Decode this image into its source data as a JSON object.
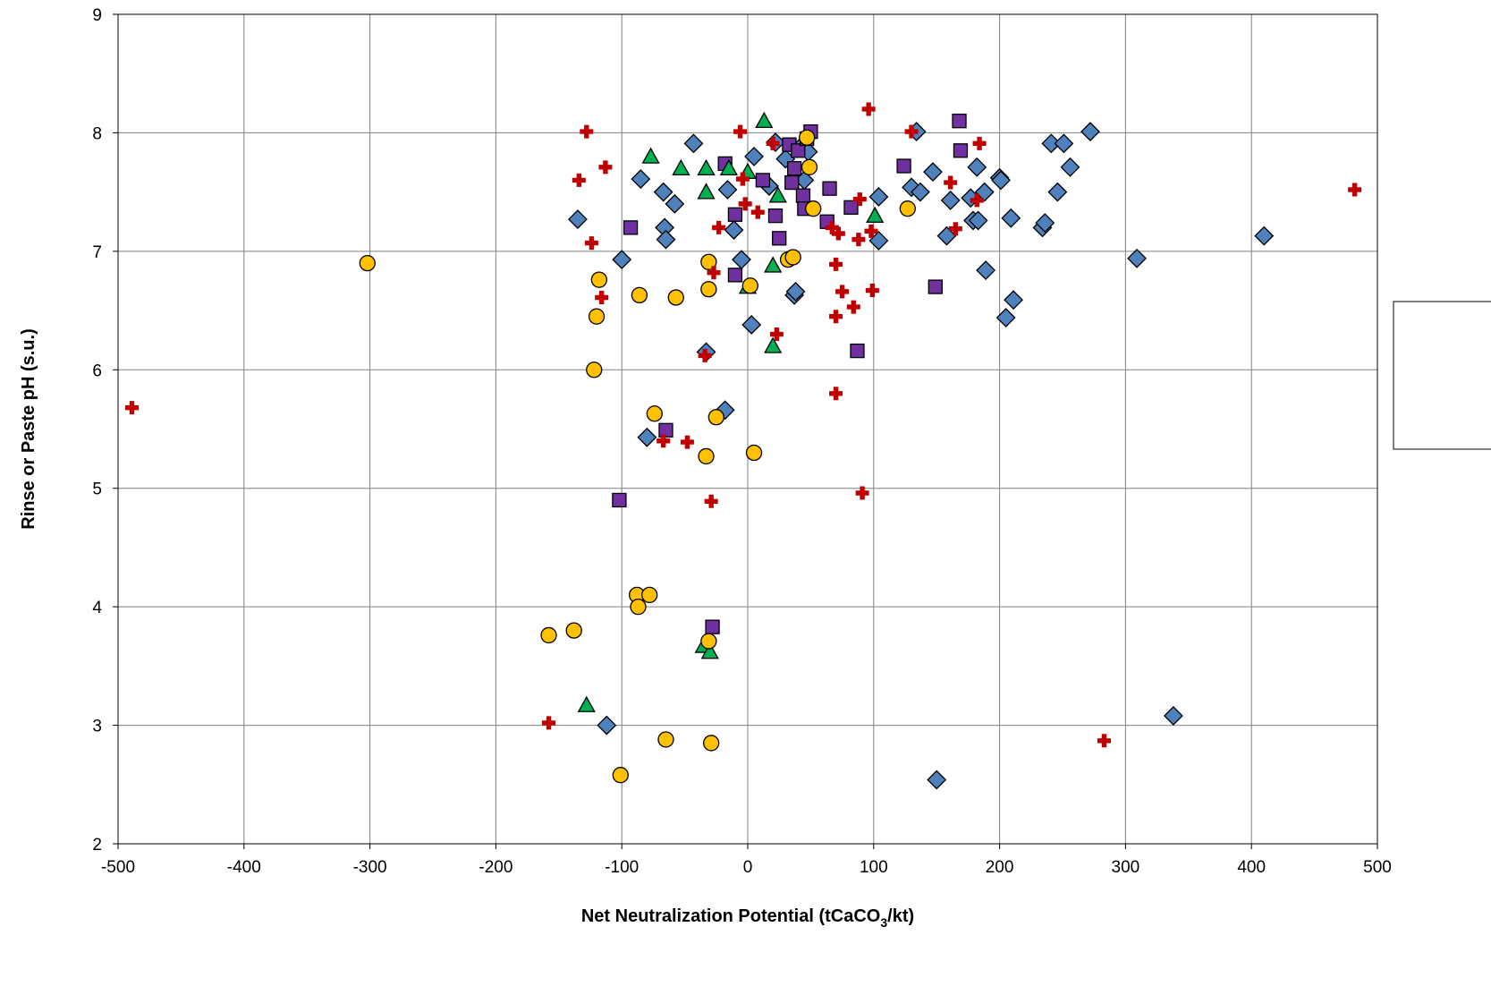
{
  "colors": {
    "diamond": "#4F81BD",
    "square": "#7030A0",
    "triangle": "#00B050",
    "circle": "#FFC000",
    "cross": "#C00000",
    "grid": "#808080"
  },
  "chart_data": {
    "type": "scatter",
    "title": "",
    "xlabel": "Net Neutralization Potential (tCaCO",
    "xlabel_sub": "3",
    "xlabel_tail": "/kt)",
    "ylabel": "Rinse or Paste pH (s.u.)",
    "xlim": [
      -500,
      500
    ],
    "ylim": [
      2,
      9
    ],
    "grid": true,
    "legend_position": "right (clipped)",
    "x_ticks": [
      "-500",
      "-400",
      "-300",
      "-200",
      "-100",
      "0",
      "100",
      "200",
      "300",
      "400",
      "500"
    ],
    "y_ticks": [
      "2",
      "3",
      "4",
      "5",
      "6",
      "7",
      "8",
      "9"
    ],
    "series": [
      {
        "marker": "diamond",
        "color": "#4F81BD",
        "points": [
          [
            -135,
            7.27
          ],
          [
            -112,
            3.0
          ],
          [
            -100,
            6.93
          ],
          [
            -85,
            7.61
          ],
          [
            -80,
            5.43
          ],
          [
            -67,
            7.5
          ],
          [
            -66,
            7.2
          ],
          [
            -65,
            7.1
          ],
          [
            -58,
            7.4
          ],
          [
            -43,
            7.91
          ],
          [
            -33,
            6.15
          ],
          [
            -18,
            5.66
          ],
          [
            -16,
            7.52
          ],
          [
            -11,
            7.18
          ],
          [
            -5,
            6.93
          ],
          [
            3,
            6.38
          ],
          [
            5,
            7.8
          ],
          [
            17,
            7.55
          ],
          [
            22,
            7.92
          ],
          [
            30,
            7.78
          ],
          [
            37,
            6.63
          ],
          [
            38,
            6.66
          ],
          [
            42,
            7.88
          ],
          [
            45,
            7.6
          ],
          [
            48,
            7.84
          ],
          [
            104,
            7.46
          ],
          [
            104,
            7.09
          ],
          [
            130,
            7.54
          ],
          [
            134,
            8.01
          ],
          [
            137,
            7.5
          ],
          [
            147,
            7.67
          ],
          [
            150,
            2.54
          ],
          [
            158,
            7.13
          ],
          [
            161,
            7.43
          ],
          [
            177,
            7.45
          ],
          [
            179,
            7.26
          ],
          [
            182,
            7.71
          ],
          [
            183,
            7.26
          ],
          [
            188,
            7.5
          ],
          [
            189,
            6.84
          ],
          [
            200,
            7.62
          ],
          [
            201,
            7.6
          ],
          [
            205,
            6.44
          ],
          [
            209,
            7.28
          ],
          [
            211,
            6.59
          ],
          [
            234,
            7.2
          ],
          [
            236,
            7.24
          ],
          [
            241,
            7.91
          ],
          [
            246,
            7.5
          ],
          [
            251,
            7.91
          ],
          [
            256,
            7.71
          ],
          [
            272,
            8.01
          ],
          [
            309,
            6.94
          ],
          [
            338,
            3.08
          ],
          [
            410,
            7.13
          ]
        ]
      },
      {
        "marker": "square",
        "color": "#7030A0",
        "points": [
          [
            -93,
            7.2
          ],
          [
            -102,
            4.9
          ],
          [
            -65,
            5.49
          ],
          [
            -28,
            3.83
          ],
          [
            -18,
            7.74
          ],
          [
            -10,
            7.31
          ],
          [
            -10,
            6.8
          ],
          [
            12,
            7.6
          ],
          [
            22,
            7.3
          ],
          [
            25,
            7.11
          ],
          [
            33,
            7.9
          ],
          [
            35,
            7.58
          ],
          [
            37,
            7.7
          ],
          [
            40,
            7.85
          ],
          [
            44,
            7.47
          ],
          [
            45,
            7.36
          ],
          [
            47,
            7.95
          ],
          [
            50,
            8.01
          ],
          [
            63,
            7.25
          ],
          [
            65,
            7.53
          ],
          [
            82,
            7.37
          ],
          [
            87,
            6.16
          ],
          [
            124,
            7.72
          ],
          [
            149,
            6.7
          ],
          [
            168,
            8.1
          ],
          [
            169,
            7.85
          ]
        ]
      },
      {
        "marker": "triangle",
        "color": "#00B050",
        "points": [
          [
            -128,
            3.17
          ],
          [
            -77,
            7.8
          ],
          [
            -53,
            7.7
          ],
          [
            -33,
            7.5
          ],
          [
            -33,
            7.7
          ],
          [
            -35,
            3.67
          ],
          [
            -30,
            3.62
          ],
          [
            -15,
            7.7
          ],
          [
            0,
            7.67
          ],
          [
            0,
            6.7
          ],
          [
            13,
            8.1
          ],
          [
            20,
            6.2
          ],
          [
            20,
            6.88
          ],
          [
            24,
            7.47
          ],
          [
            101,
            7.3
          ]
        ]
      },
      {
        "marker": "circle",
        "color": "#FFC000",
        "points": [
          [
            -302,
            6.9
          ],
          [
            -158,
            3.76
          ],
          [
            -138,
            3.8
          ],
          [
            -122,
            6.0
          ],
          [
            -120,
            6.45
          ],
          [
            -118,
            6.76
          ],
          [
            -101,
            2.58
          ],
          [
            -88,
            4.1
          ],
          [
            -87,
            4.0
          ],
          [
            -86,
            6.63
          ],
          [
            -78,
            4.1
          ],
          [
            -74,
            5.63
          ],
          [
            -65,
            2.88
          ],
          [
            -57,
            6.61
          ],
          [
            -33,
            5.27
          ],
          [
            -31,
            3.71
          ],
          [
            -31,
            6.91
          ],
          [
            -31,
            6.68
          ],
          [
            -29,
            2.85
          ],
          [
            -25,
            5.6
          ],
          [
            2,
            6.71
          ],
          [
            5,
            5.3
          ],
          [
            32,
            6.93
          ],
          [
            36,
            6.95
          ],
          [
            47,
            7.96
          ],
          [
            49,
            7.71
          ],
          [
            52,
            7.36
          ],
          [
            127,
            7.36
          ]
        ]
      },
      {
        "marker": "cross",
        "color": "#C00000",
        "points": [
          [
            -489,
            5.68
          ],
          [
            -158,
            3.02
          ],
          [
            -134,
            7.6
          ],
          [
            -128,
            8.01
          ],
          [
            -124,
            7.07
          ],
          [
            -116,
            6.61
          ],
          [
            -113,
            7.71
          ],
          [
            -67,
            5.4
          ],
          [
            -48,
            5.39
          ],
          [
            -34,
            6.12
          ],
          [
            -29,
            4.89
          ],
          [
            -27,
            6.82
          ],
          [
            -23,
            7.2
          ],
          [
            -6,
            8.01
          ],
          [
            -4,
            7.61
          ],
          [
            -2,
            7.4
          ],
          [
            8,
            7.33
          ],
          [
            20,
            7.91
          ],
          [
            23,
            6.3
          ],
          [
            67,
            7.2
          ],
          [
            70,
            5.8
          ],
          [
            70,
            6.45
          ],
          [
            70,
            6.89
          ],
          [
            72,
            7.15
          ],
          [
            75,
            6.66
          ],
          [
            84,
            6.53
          ],
          [
            88,
            7.1
          ],
          [
            89,
            7.44
          ],
          [
            91,
            4.96
          ],
          [
            96,
            8.2
          ],
          [
            98,
            7.17
          ],
          [
            99,
            6.67
          ],
          [
            130,
            8.01
          ],
          [
            161,
            7.58
          ],
          [
            165,
            7.19
          ],
          [
            182,
            7.43
          ],
          [
            184,
            7.91
          ],
          [
            283,
            2.87
          ],
          [
            482,
            7.52
          ]
        ]
      }
    ]
  }
}
